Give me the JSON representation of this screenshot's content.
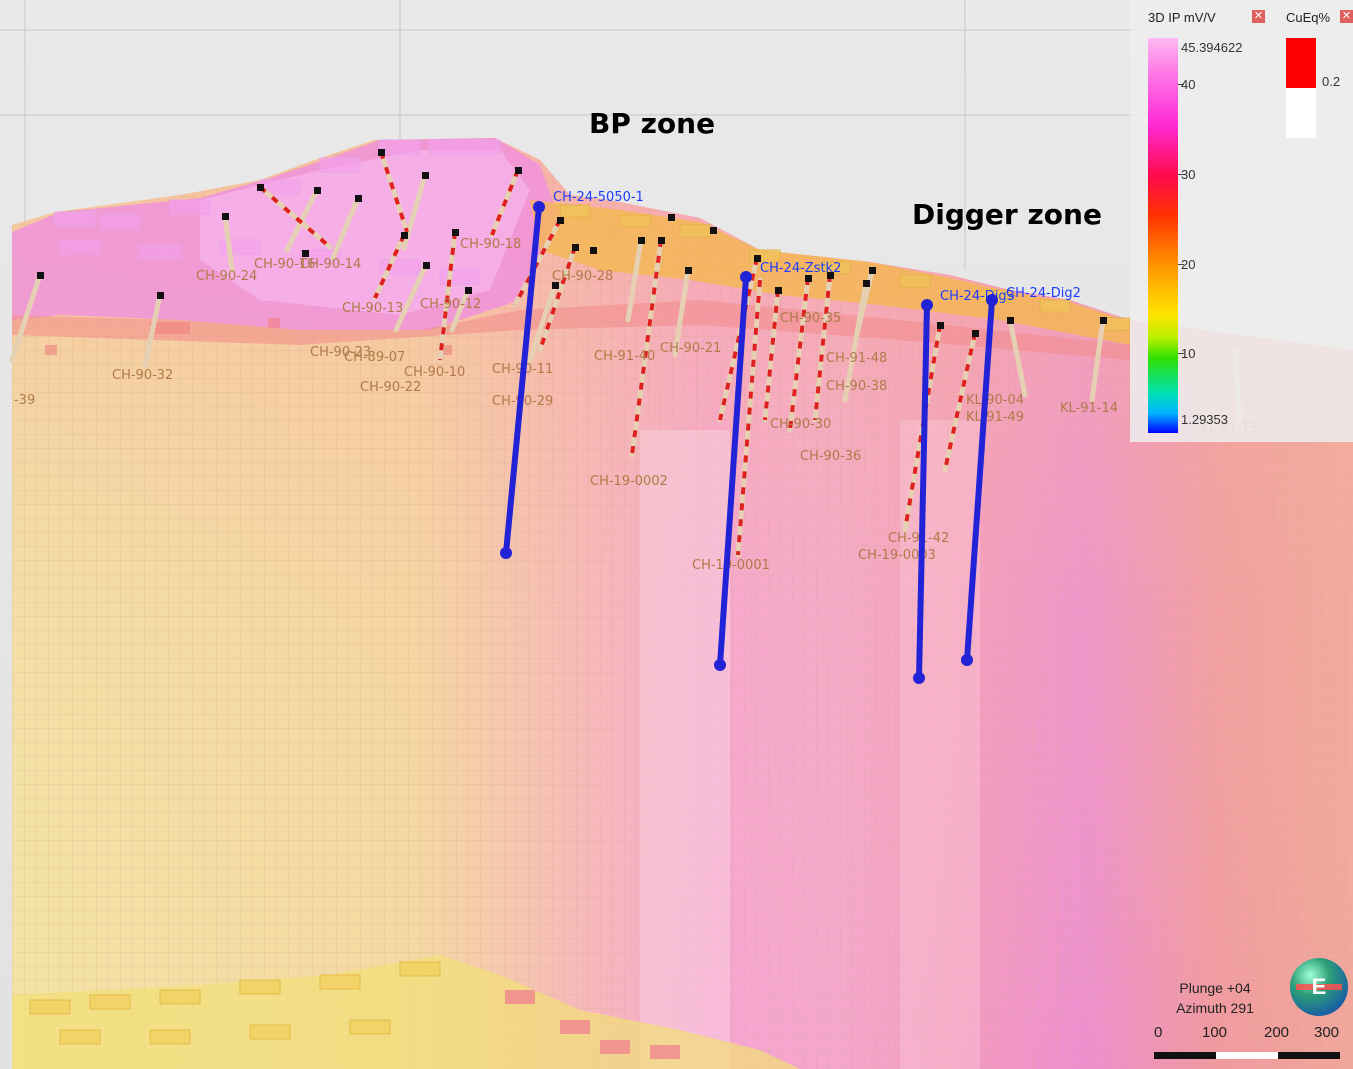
{
  "zone_labels": {
    "bp": "BP zone",
    "digger": "Digger zone"
  },
  "new_holes": [
    {
      "name": "CH-24-5050-1"
    },
    {
      "name": "CH-24-Zstk2"
    },
    {
      "name": "CH-24-Dig3"
    },
    {
      "name": "CH-24-Dig2"
    }
  ],
  "hole_labels": [
    "CH-90-24",
    "CH-90-16",
    "CH-90-14",
    "CH-90-18",
    "CH-90-13",
    "CH-90-12",
    "CH-90-28",
    "CH-90-32",
    "CH-90-23",
    "CH-89-07",
    "CH-90-10",
    "CH-90-22",
    "CH-90-11",
    "CH-90-29",
    "CH-91-40",
    "CH-90-21",
    "CH-90-35",
    "CH-91-48",
    "CH-90-38",
    "CH-90-30",
    "CH-90-36",
    "CH-19-0002",
    "CH-19-0001",
    "KL-90-04",
    "KL-91-49",
    "KL-91-14",
    "CH-91-42",
    "CH-19-0003",
    "-39",
    "KL-91-13"
  ],
  "legend": {
    "ip": {
      "title": "3D IP mV/V",
      "max_label": "45.394622",
      "min_label": "1.29353",
      "ticks": [
        "40",
        "30",
        "20",
        "10"
      ]
    },
    "cueq": {
      "title": "CuEq%",
      "tick": "0.2"
    },
    "close_glyph": "✕"
  },
  "orientation": {
    "plunge": "Plunge +04",
    "azimuth": "Azimuth 291"
  },
  "compass_letter": "E",
  "scale_labels": [
    "0",
    "100",
    "200",
    "300"
  ],
  "colors": {
    "new_hole_blue": "#2222d6",
    "old_hole_label": "#b07a48",
    "new_hole_label": "#1b3cff",
    "ip_high": "#ff9be6",
    "ip_low": "#f3e49e"
  }
}
